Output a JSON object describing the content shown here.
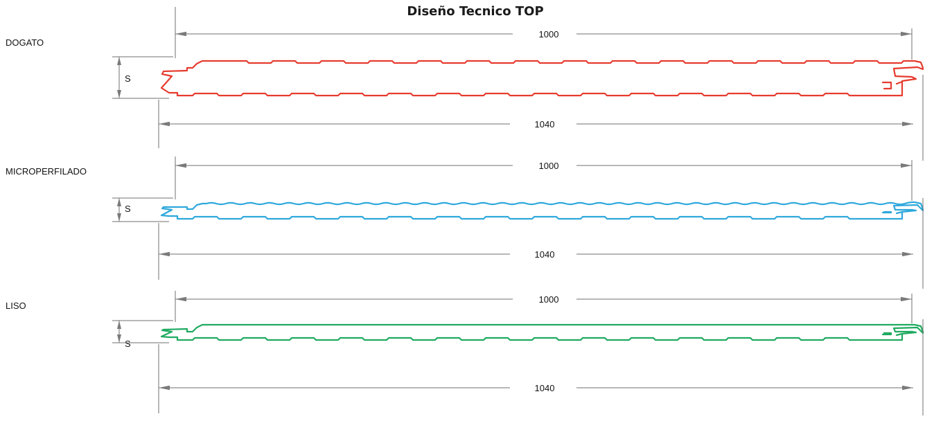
{
  "title": "Diseño Tecnico TOP",
  "panels": [
    {
      "label": "DOGATO",
      "color": "#e63b2e",
      "top_surface": "ribbed",
      "thickness_label": "S",
      "dim_inner": "1000",
      "dim_outer": "1040"
    },
    {
      "label": "MICROPERFILADO",
      "color": "#2ea8dc",
      "top_surface": "microprofiled",
      "thickness_label": "S",
      "dim_inner": "1000",
      "dim_outer": "1040"
    },
    {
      "label": "LISO",
      "color": "#1faa60",
      "top_surface": "flat",
      "thickness_label": "S",
      "dim_inner": "1000",
      "dim_outer": "1040"
    }
  ]
}
